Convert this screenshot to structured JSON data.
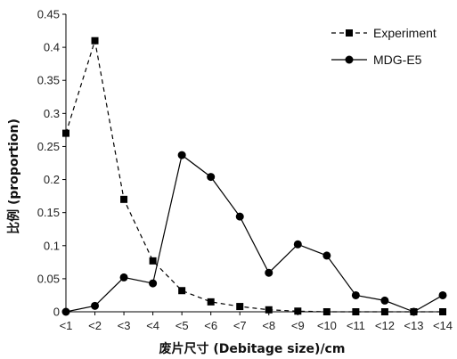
{
  "chart_data": {
    "type": "line",
    "title": "",
    "xlabel": "废片尺寸 (Debitage size)/cm",
    "ylabel": "比例 (proportion)",
    "categories": [
      "<1",
      "<2",
      "<3",
      "<4",
      "<5",
      "<6",
      "<7",
      "<8",
      "<9",
      "<10",
      "<11",
      "<12",
      "<13",
      "<14"
    ],
    "ylim": [
      0,
      0.45
    ],
    "yticks": [
      "0",
      "0.05",
      "0.1",
      "0.15",
      "0.2",
      "0.25",
      "0.3",
      "0.35",
      "0.4",
      "0.45"
    ],
    "ytick_values": [
      0,
      0.05,
      0.1,
      0.15,
      0.2,
      0.25,
      0.3,
      0.35,
      0.4,
      0.45
    ],
    "grid": false,
    "legend_position": "top-right",
    "series": [
      {
        "name": "Experiment",
        "line_style": "dashed",
        "marker": "square",
        "color": "#000000",
        "values": [
          0.27,
          0.41,
          0.17,
          0.077,
          0.032,
          0.015,
          0.008,
          0.003,
          0.001,
          0.0,
          0.0,
          0.0,
          0.0,
          0.0
        ]
      },
      {
        "name": "MDG-E5",
        "line_style": "solid",
        "marker": "circle",
        "color": "#000000",
        "values": [
          0.0,
          0.009,
          0.052,
          0.043,
          0.237,
          0.204,
          0.144,
          0.059,
          0.102,
          0.085,
          0.025,
          0.017,
          0.0,
          0.025
        ]
      }
    ]
  }
}
